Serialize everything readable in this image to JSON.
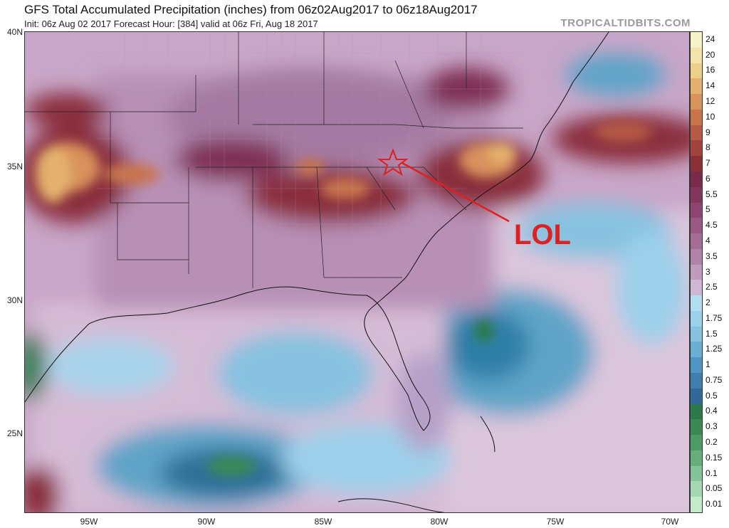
{
  "header": {
    "title": "GFS Total Accumulated Precipitation (inches) from 06z02Aug2017 to 06z18Aug2017",
    "subtitle": "Init: 06z Aug 02 2017   Forecast Hour: [384]   valid at 06z Fri, Aug 18 2017",
    "brand": "TROPICALTIDBITS.COM"
  },
  "map": {
    "lat_labels": [
      "40N",
      "35N",
      "30N",
      "25N"
    ],
    "lon_labels": [
      "95W",
      "90W",
      "85W",
      "80W",
      "75W",
      "70W"
    ],
    "annotation": "LOL"
  },
  "colorbar": {
    "labels": [
      "24",
      "20",
      "16",
      "14",
      "12",
      "10",
      "9",
      "8",
      "7",
      "6",
      "5.5",
      "5",
      "4.5",
      "4",
      "3.5",
      "3",
      "2.5",
      "2",
      "1.75",
      "1.5",
      "1.25",
      "1",
      "0.75",
      "0.5",
      "0.4",
      "0.3",
      "0.2",
      "0.15",
      "0.1",
      "0.05",
      "0.01"
    ],
    "colors": [
      "#f6f2c8",
      "#f1e3a9",
      "#ecd08a",
      "#e4b16d",
      "#d8925c",
      "#c8744d",
      "#b65a45",
      "#a2433e",
      "#8c3038",
      "#7a2a4a",
      "#84365e",
      "#8e4670",
      "#985a82",
      "#a46e94",
      "#b084a8",
      "#c09cbc",
      "#d0b6d2",
      "#b2dcf0",
      "#9cd0ea",
      "#86c2e0",
      "#6aaed4",
      "#5096c2",
      "#3f7fae",
      "#306898",
      "#2c7a4a",
      "#3a8a56",
      "#4d9c66",
      "#66ae7c",
      "#84c498",
      "#a4d8b4",
      "#c4eacc"
    ]
  }
}
